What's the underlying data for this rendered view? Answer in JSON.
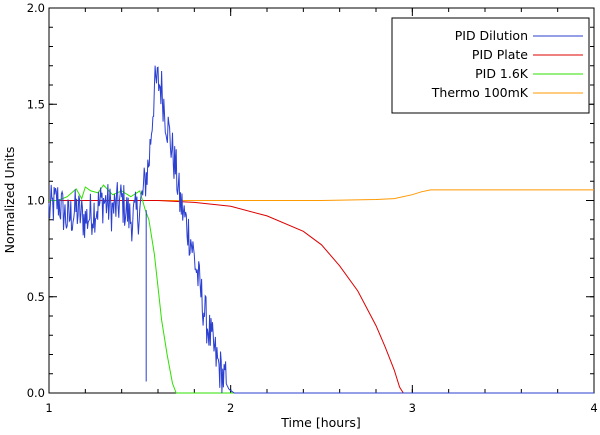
{
  "chart_data": {
    "type": "line",
    "title": "",
    "xlabel": "Time [hours]",
    "ylabel": "Normalized Units",
    "xlim": [
      1,
      4
    ],
    "ylim": [
      0,
      2
    ],
    "xticks": [
      1,
      2,
      3,
      4
    ],
    "yticks": [
      0,
      0.5,
      1,
      1.5,
      2
    ],
    "xtick_labels": [
      "1",
      "2",
      "3",
      "4"
    ],
    "ytick_labels": [
      "0.0",
      "0.5",
      "1.0",
      "1.5",
      "2.0"
    ],
    "grid": false,
    "legend_position": "top-right",
    "series": [
      {
        "name": "PID Dilution",
        "color": "#2b3fd0",
        "noisy": true,
        "x": [
          1.0,
          1.05,
          1.1,
          1.15,
          1.2,
          1.25,
          1.3,
          1.35,
          1.4,
          1.45,
          1.5,
          1.52,
          1.55,
          1.57,
          1.58,
          1.6,
          1.62,
          1.64,
          1.66,
          1.68,
          1.7,
          1.72,
          1.75,
          1.78,
          1.8,
          1.83,
          1.86,
          1.9,
          1.93,
          1.96,
          1.99,
          2.02,
          2.05,
          2.5,
          3.0,
          3.5,
          4.0
        ],
        "y": [
          0.95,
          1.0,
          0.9,
          0.95,
          0.9,
          0.95,
          1.0,
          0.95,
          1.0,
          0.9,
          0.95,
          1.05,
          1.2,
          1.45,
          1.58,
          1.62,
          1.58,
          1.45,
          1.35,
          1.25,
          1.15,
          1.0,
          0.9,
          0.8,
          0.7,
          0.55,
          0.4,
          0.25,
          0.15,
          0.08,
          0.02,
          0.0,
          0.0,
          0.0,
          0.0,
          0.0,
          0.0
        ]
      },
      {
        "name": "PID Plate",
        "color": "#dd0000",
        "noisy": false,
        "x": [
          1.0,
          1.2,
          1.4,
          1.6,
          1.8,
          2.0,
          2.2,
          2.4,
          2.5,
          2.6,
          2.7,
          2.8,
          2.85,
          2.9,
          2.93,
          2.95,
          3.0,
          3.5,
          4.0
        ],
        "y": [
          1.0,
          1.0,
          1.0,
          1.0,
          0.99,
          0.97,
          0.92,
          0.84,
          0.77,
          0.66,
          0.53,
          0.35,
          0.24,
          0.12,
          0.03,
          0.0,
          0.0,
          0.0,
          0.0
        ]
      },
      {
        "name": "PID 1.6K",
        "color": "#2ee000",
        "noisy": false,
        "x": [
          1.0,
          1.05,
          1.1,
          1.15,
          1.18,
          1.2,
          1.23,
          1.27,
          1.3,
          1.35,
          1.4,
          1.45,
          1.5,
          1.53,
          1.55,
          1.58,
          1.6,
          1.62,
          1.65,
          1.68,
          1.7,
          1.75,
          2.0,
          3.0,
          4.0
        ],
        "y": [
          1.0,
          1.0,
          1.02,
          1.06,
          1.01,
          1.07,
          1.05,
          1.04,
          1.08,
          1.03,
          1.05,
          1.02,
          1.05,
          0.95,
          0.9,
          0.72,
          0.55,
          0.38,
          0.2,
          0.05,
          0.0,
          0.0,
          0.0,
          0.0,
          0.0
        ]
      },
      {
        "name": "Thermo 100mK",
        "color": "#ff9900",
        "noisy": false,
        "x": [
          1.0,
          1.5,
          2.0,
          2.5,
          2.8,
          2.9,
          3.0,
          3.05,
          3.1,
          3.5,
          4.0
        ],
        "y": [
          1.0,
          1.0,
          1.0,
          1.0,
          1.005,
          1.01,
          1.03,
          1.045,
          1.055,
          1.055,
          1.055
        ]
      }
    ]
  }
}
